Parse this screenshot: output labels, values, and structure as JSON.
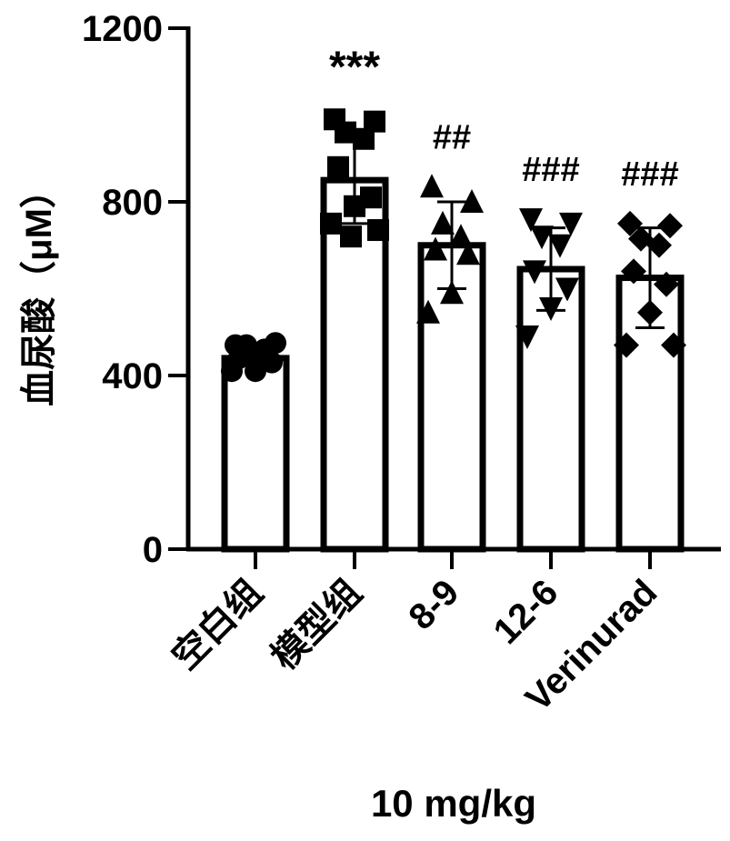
{
  "chart_data": {
    "type": "bar",
    "ylabel": "血尿酸（μM）",
    "xlabel": "10 mg/kg",
    "ylim": [
      0,
      1200
    ],
    "yticks": [
      0,
      400,
      800,
      1200
    ],
    "categories": [
      "空白组",
      "模型组",
      "8-9",
      "12-6",
      "Verinurad"
    ],
    "means": [
      440,
      850,
      700,
      645,
      625
    ],
    "errors": [
      10,
      100,
      100,
      95,
      115
    ],
    "markers": [
      "circle",
      "square",
      "triangle-up",
      "triangle-down",
      "diamond"
    ],
    "significance": [
      "",
      "***",
      "##",
      "###",
      "###"
    ],
    "points": [
      [
        470,
        475,
        470,
        460,
        440,
        430,
        410,
        410
      ],
      [
        990,
        985,
        960,
        945,
        880,
        810,
        790,
        750,
        735,
        720
      ],
      [
        835,
        800,
        750,
        720,
        690,
        680,
        590,
        545
      ],
      [
        760,
        750,
        720,
        700,
        640,
        600,
        555,
        490
      ],
      [
        750,
        745,
        715,
        700,
        640,
        610,
        545,
        470,
        470
      ]
    ]
  }
}
